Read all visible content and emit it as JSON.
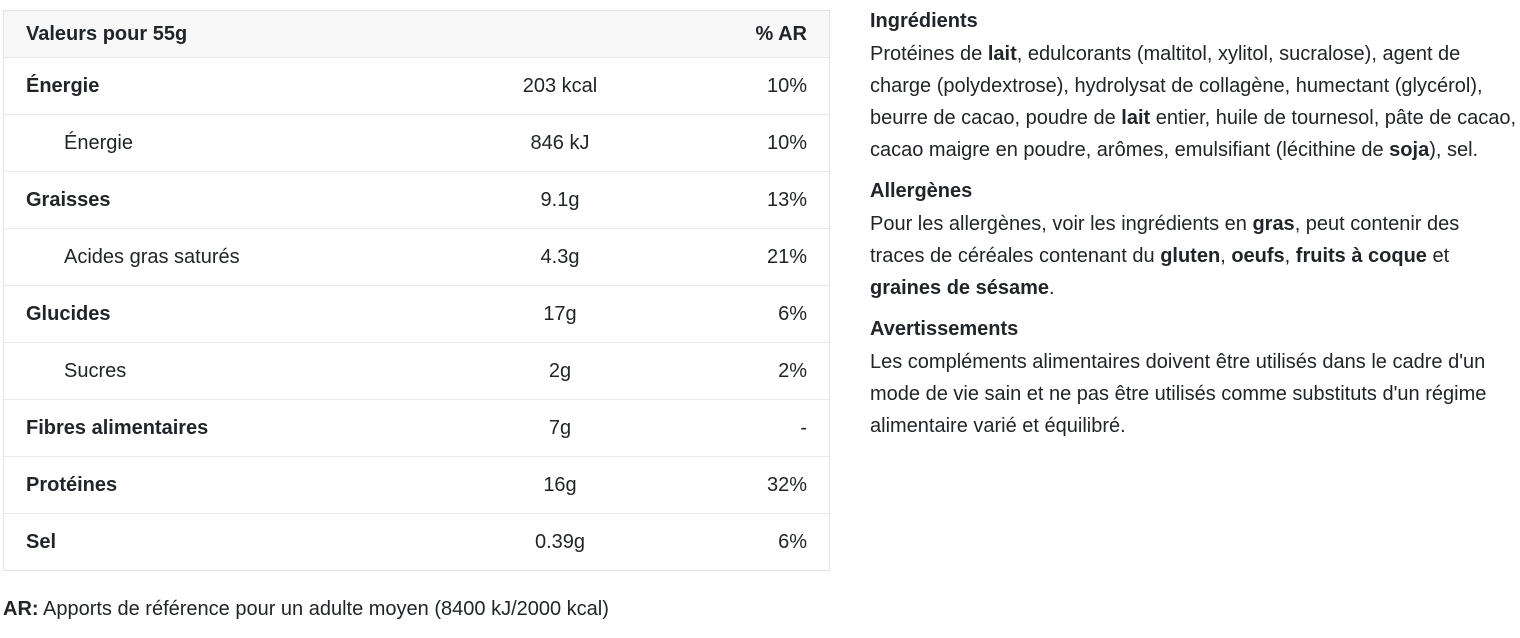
{
  "colors": {
    "background": "#ffffff",
    "text": "#212529",
    "table_border": "#e3e3e3",
    "row_divider": "#e9e9e9",
    "header_background": "#f8f8f8"
  },
  "nutrition_table": {
    "header": {
      "serving_label": "Valeurs pour 55g",
      "percent_label": "% AR"
    },
    "rows": [
      {
        "label": "Énergie",
        "value": "203 kcal",
        "percent": "10%",
        "indent": false
      },
      {
        "label": "Énergie",
        "value": "846 kJ",
        "percent": "10%",
        "indent": true
      },
      {
        "label": "Graisses",
        "value": "9.1g",
        "percent": "13%",
        "indent": false
      },
      {
        "label": "Acides gras saturés",
        "value": "4.3g",
        "percent": "21%",
        "indent": true
      },
      {
        "label": "Glucides",
        "value": "17g",
        "percent": "6%",
        "indent": false
      },
      {
        "label": "Sucres",
        "value": "2g",
        "percent": "2%",
        "indent": true
      },
      {
        "label": "Fibres alimentaires",
        "value": "7g",
        "percent": "-",
        "indent": false
      },
      {
        "label": "Protéines",
        "value": "16g",
        "percent": "32%",
        "indent": false
      },
      {
        "label": "Sel",
        "value": "0.39g",
        "percent": "6%",
        "indent": false
      }
    ],
    "footnote": {
      "label": "AR:",
      "text": "Apports de référence pour un adulte moyen (8400 kJ/2000 kcal)"
    }
  },
  "info_sections": [
    {
      "title": "Ingrédients",
      "segments": [
        {
          "text": "Protéines de ",
          "bold": false
        },
        {
          "text": "lait",
          "bold": true
        },
        {
          "text": ", edulcorants (maltitol, xylitol, sucralose), agent de charge (polydextrose), hydrolysat de collagène, humectant (glycérol), beurre de cacao, poudre de ",
          "bold": false
        },
        {
          "text": "lait",
          "bold": true
        },
        {
          "text": " entier, huile de tournesol, pâte de cacao, cacao maigre en poudre, arômes, emulsifiant (lécithine de ",
          "bold": false
        },
        {
          "text": "soja",
          "bold": true
        },
        {
          "text": "), sel.",
          "bold": false
        }
      ]
    },
    {
      "title": "Allergènes",
      "segments": [
        {
          "text": "Pour les allergènes, voir les ingrédients en ",
          "bold": false
        },
        {
          "text": "gras",
          "bold": true
        },
        {
          "text": ", peut contenir des traces de céréales contenant du ",
          "bold": false
        },
        {
          "text": "gluten",
          "bold": true
        },
        {
          "text": ", ",
          "bold": false
        },
        {
          "text": "oeufs",
          "bold": true
        },
        {
          "text": ", ",
          "bold": false
        },
        {
          "text": "fruits à coque",
          "bold": true
        },
        {
          "text": " et ",
          "bold": false
        },
        {
          "text": "graines de sésame",
          "bold": true
        },
        {
          "text": ".",
          "bold": false
        }
      ]
    },
    {
      "title": "Avertissements",
      "segments": [
        {
          "text": "Les compléments alimentaires doivent être utilisés dans le cadre d'un mode de vie sain et ne pas être utilisés comme substituts d'un régime alimentaire varié et équilibré.",
          "bold": false
        }
      ]
    }
  ]
}
